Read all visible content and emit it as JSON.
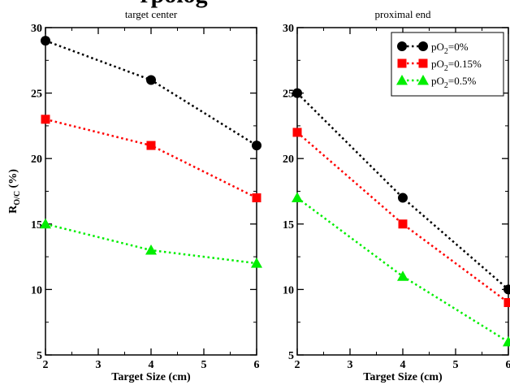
{
  "figure": {
    "title_fragment": "rpolog"
  },
  "chart_data": [
    {
      "type": "line",
      "title": "target center",
      "xlabel": "Target Size (cm)",
      "ylabel": "R",
      "ylabel_sub": "O/C",
      "ylabel_suffix": " (%)",
      "xlim": [
        2,
        6
      ],
      "ylim": [
        5,
        30
      ],
      "xticks": [
        2,
        3,
        4,
        5,
        6
      ],
      "yticks": [
        5,
        10,
        15,
        20,
        25,
        30
      ],
      "x": [
        2,
        4,
        6
      ],
      "series": [
        {
          "name": "pO2=0%",
          "marker": "circle",
          "color": "#000000",
          "values": [
            29,
            26,
            21
          ]
        },
        {
          "name": "pO2=0.15%",
          "marker": "square",
          "color": "#ff0000",
          "values": [
            23,
            21,
            17
          ]
        },
        {
          "name": "pO2=0.5%",
          "marker": "triangle",
          "color": "#00ee00",
          "values": [
            15,
            13,
            12
          ]
        }
      ]
    },
    {
      "type": "line",
      "title": "proximal end",
      "xlabel": "Target Size (cm)",
      "xlim": [
        2,
        6
      ],
      "ylim": [
        5,
        30
      ],
      "xticks": [
        2,
        3,
        4,
        5,
        6
      ],
      "yticks": [
        5,
        10,
        15,
        20,
        25,
        30
      ],
      "x": [
        2,
        4,
        6
      ],
      "legend": {
        "position": "top-right",
        "items": [
          {
            "pre": "pO",
            "sub": "2",
            "post": "=0%",
            "marker": "circle",
            "color": "#000000"
          },
          {
            "pre": "pO",
            "sub": "2",
            "post": "=0.15%",
            "marker": "square",
            "color": "#ff0000"
          },
          {
            "pre": "pO",
            "sub": "2",
            "post": "=0.5%",
            "marker": "triangle",
            "color": "#00ee00"
          }
        ]
      },
      "series": [
        {
          "name": "pO2=0%",
          "marker": "circle",
          "color": "#000000",
          "values": [
            25,
            17,
            10
          ]
        },
        {
          "name": "pO2=0.15%",
          "marker": "square",
          "color": "#ff0000",
          "values": [
            22,
            15,
            9
          ]
        },
        {
          "name": "pO2=0.5%",
          "marker": "triangle",
          "color": "#00ee00",
          "values": [
            17,
            11,
            6
          ]
        }
      ]
    }
  ]
}
